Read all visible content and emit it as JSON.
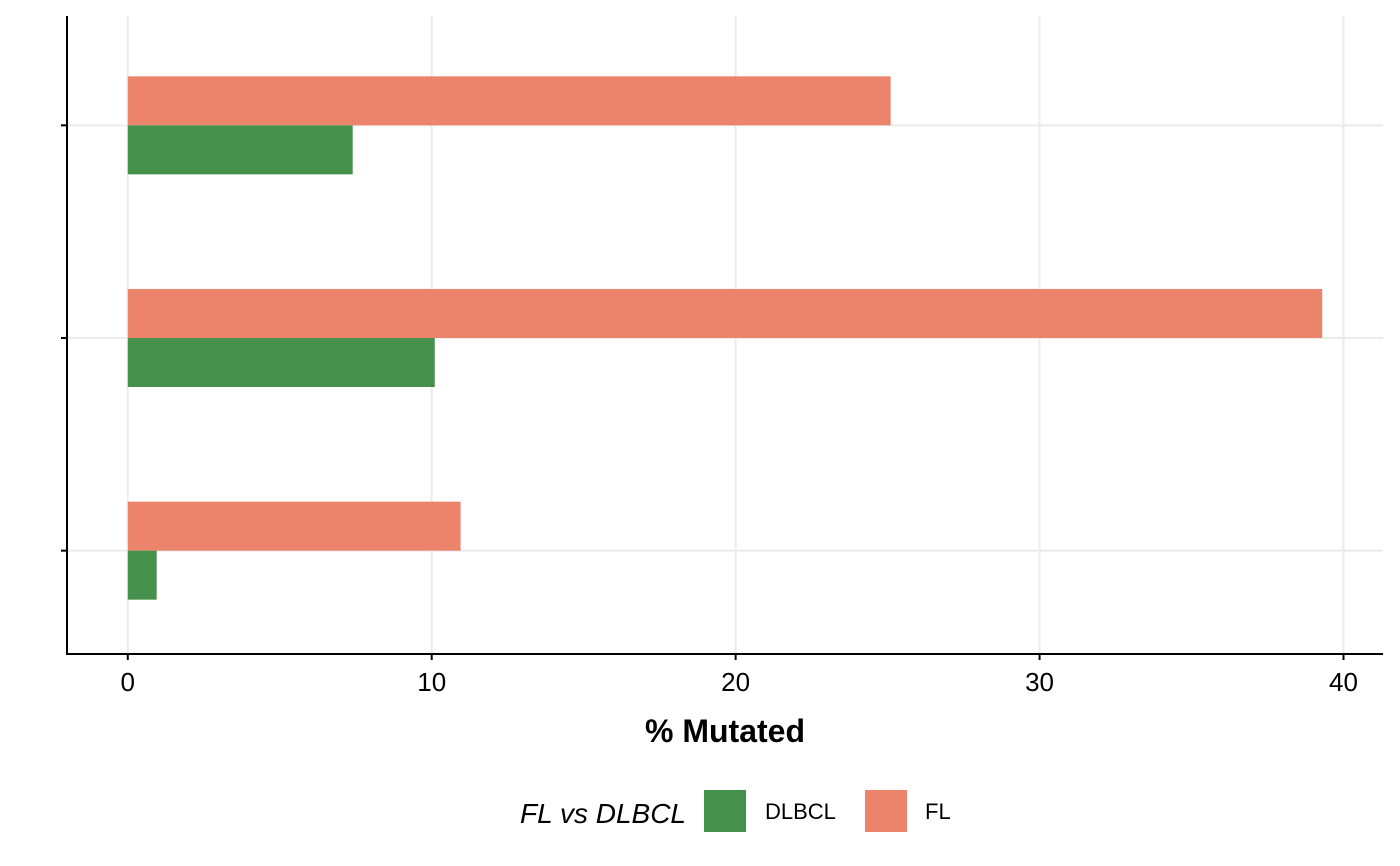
{
  "chart_data": {
    "type": "bar",
    "orientation": "horizontal",
    "categories": [
      "",
      "",
      ""
    ],
    "series": [
      {
        "name": "DLBCL",
        "values": [
          7.4,
          10.1,
          0.95
        ],
        "color": "#45914B"
      },
      {
        "name": "FL",
        "values": [
          25.1,
          39.3,
          10.95
        ],
        "color": "#EB846B"
      }
    ],
    "xlabel": "% Mutated",
    "ylabel": "",
    "xlim": [
      -2,
      41.3
    ],
    "xticks": [
      0,
      10,
      20,
      30,
      40
    ],
    "grid": true,
    "legend": {
      "title": "FL vs DLBCL",
      "placement": "bottom"
    }
  }
}
